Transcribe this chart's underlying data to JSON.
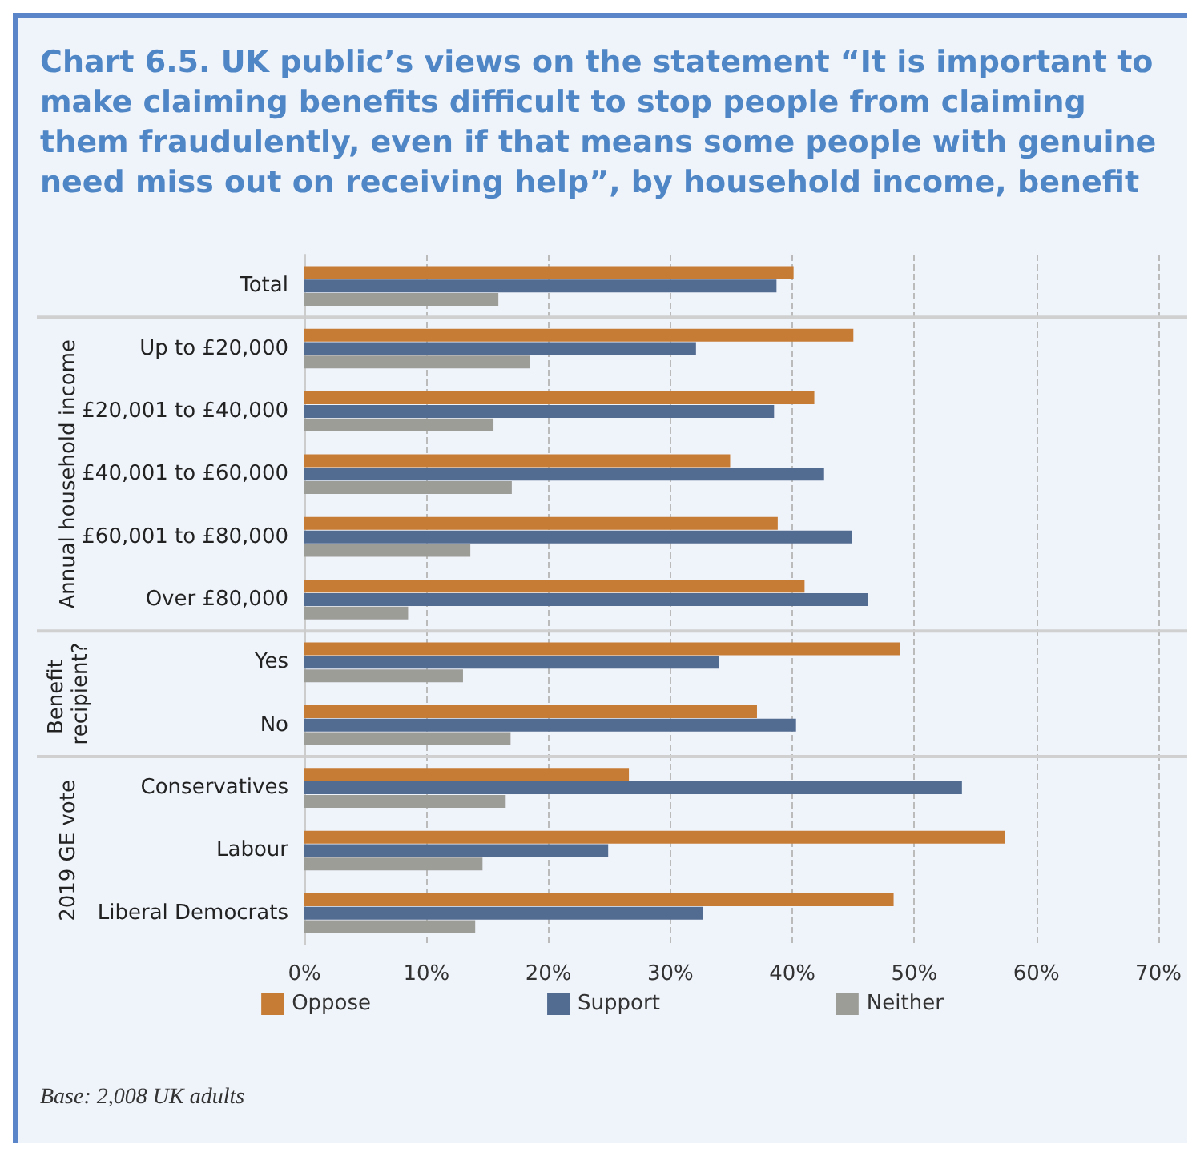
{
  "chart_data": {
    "type": "bar",
    "orientation": "horizontal",
    "title": "Chart 6.5. UK public’s views on the statement “It is important to make claiming benefits difficult to stop people from claiming them fraudulently, even if that means some people with genuine need miss out on receiving help”, by household income, benefit",
    "categories": [
      "Total",
      "Up to £20,000",
      "£20,001 to £40,000",
      "£40,001 to £60,000",
      "£60,001 to £80,000",
      "Over £80,000",
      "Yes",
      "No",
      "Conservatives",
      "Labour",
      "Liberal Democrats"
    ],
    "series": [
      {
        "name": "Oppose",
        "color": "#c77c35",
        "values": [
          40.1,
          45.0,
          41.8,
          34.9,
          38.8,
          41.0,
          48.8,
          37.1,
          26.6,
          57.4,
          48.3
        ]
      },
      {
        "name": "Support",
        "color": "#526b91",
        "values": [
          38.7,
          32.1,
          38.5,
          42.6,
          44.9,
          46.2,
          34.0,
          40.3,
          53.9,
          24.9,
          32.7
        ]
      },
      {
        "name": "Neither",
        "color": "#9d9d98",
        "values": [
          15.9,
          18.5,
          15.5,
          17.0,
          13.6,
          8.5,
          13.0,
          16.9,
          16.5,
          14.6,
          14.0
        ]
      }
    ],
    "xlim": [
      0,
      70
    ],
    "xticks": [
      {
        "value": 0,
        "label": "0%"
      },
      {
        "value": 10,
        "label": "10%"
      },
      {
        "value": 20,
        "label": "20%"
      },
      {
        "value": 30,
        "label": "30%"
      },
      {
        "value": 40,
        "label": "40%"
      },
      {
        "value": 50,
        "label": "50%"
      },
      {
        "value": 60,
        "label": "60%"
      },
      {
        "value": 70,
        "label": "70%"
      }
    ],
    "grid": "x",
    "legend": "bottom",
    "annotations": [
      "Annual household income",
      "Benefit recipient?",
      "2019 GE vote",
      "Base: 2,008 UK adults"
    ]
  }
}
